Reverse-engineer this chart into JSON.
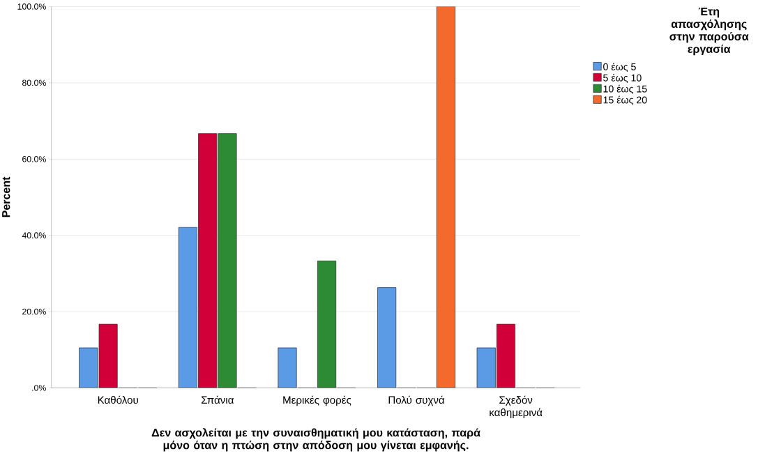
{
  "chart_data": {
    "type": "bar",
    "xlabel": "Δεν ασχολείται με την συναισθηματική μου κατάσταση, παρά μόνο όταν η πτώση στην απόδοση μου γίνεται εμφανής.",
    "ylabel": "Percent",
    "legend_title": "Έτη απασχόλησης στην παρούσα εργασία",
    "categories": [
      "Καθόλου",
      "Σπάνια",
      "Μερικές φορές",
      "Πολύ συχνά",
      "Σχεδόν καθημερινά"
    ],
    "series": [
      {
        "name": "0 έως 5",
        "color": "#5b9be6",
        "values": [
          10.5,
          42.1,
          10.5,
          26.3,
          10.5
        ]
      },
      {
        "name": "5 έως 10",
        "color": "#d20038",
        "values": [
          16.7,
          66.7,
          0,
          0,
          16.7
        ]
      },
      {
        "name": "10 έως 15",
        "color": "#2e8b35",
        "values": [
          0,
          66.7,
          33.3,
          0,
          0
        ]
      },
      {
        "name": "15 έως 20",
        "color": "#f36a2c",
        "values": [
          0,
          0,
          0,
          100,
          0
        ]
      }
    ],
    "ylim": [
      0,
      100
    ],
    "yticks": [
      {
        "value": 0,
        "label": ".0%"
      },
      {
        "value": 20,
        "label": "20.0%"
      },
      {
        "value": 40,
        "label": "40.0%"
      },
      {
        "value": 60,
        "label": "60.0%"
      },
      {
        "value": 80,
        "label": "80.0%"
      },
      {
        "value": 100,
        "label": "100.0%"
      }
    ],
    "grid": "y",
    "legend": "top right"
  }
}
